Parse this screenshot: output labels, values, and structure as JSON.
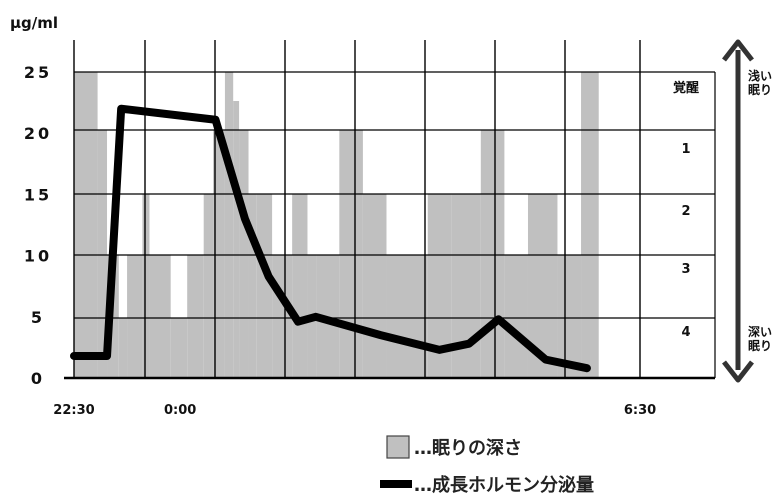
{
  "chart_data": {
    "type": "area",
    "y_unit_label": "μg/ml",
    "y_axis": {
      "range": [
        0,
        25
      ],
      "ticks": [
        "25",
        "20",
        "15",
        "10",
        "5",
        "0"
      ],
      "tick_values": [
        25,
        20,
        15,
        10,
        5,
        0
      ]
    },
    "x_axis": {
      "start": "22:30",
      "end": "6:30",
      "range_minutes": [
        0,
        480
      ],
      "tick_labels": [
        {
          "label": "22:30",
          "minute": 0
        },
        {
          "label": "0:00",
          "minute": 90
        },
        {
          "label": "6:30",
          "minute": 480
        }
      ]
    },
    "sleep_depth_axis": {
      "levels": [
        {
          "label": "覚醒",
          "value": 0
        },
        {
          "label": "1",
          "value": 1
        },
        {
          "label": "2",
          "value": 2
        },
        {
          "label": "3",
          "value": 3
        },
        {
          "label": "4",
          "value": 4
        }
      ],
      "top_label": "浅い眠り",
      "bottom_label": "深い眠り"
    },
    "series": [
      {
        "name": "成長ホルモン分泌量",
        "kind": "line",
        "points": [
          {
            "t": 0,
            "v": 1.8
          },
          {
            "t": 28,
            "v": 1.8
          },
          {
            "t": 40,
            "v": 22.0
          },
          {
            "t": 120,
            "v": 21.1
          },
          {
            "t": 145,
            "v": 13.0
          },
          {
            "t": 165,
            "v": 8.3
          },
          {
            "t": 190,
            "v": 4.6
          },
          {
            "t": 205,
            "v": 5.0
          },
          {
            "t": 260,
            "v": 3.5
          },
          {
            "t": 310,
            "v": 2.3
          },
          {
            "t": 335,
            "v": 2.8
          },
          {
            "t": 360,
            "v": 4.8
          },
          {
            "t": 400,
            "v": 1.5
          },
          {
            "t": 435,
            "v": 0.8
          }
        ]
      },
      {
        "name": "眠りの深さ",
        "kind": "area",
        "segments": [
          {
            "t0": 0,
            "t1": 20,
            "depth": 0
          },
          {
            "t0": 20,
            "t1": 28,
            "depth": 1
          },
          {
            "t0": 28,
            "t1": 38,
            "depth": 3
          },
          {
            "t0": 38,
            "t1": 45,
            "depth": 4
          },
          {
            "t0": 45,
            "t1": 58,
            "depth": 3
          },
          {
            "t0": 58,
            "t1": 64,
            "depth": 2
          },
          {
            "t0": 64,
            "t1": 82,
            "depth": 3
          },
          {
            "t0": 82,
            "t1": 96,
            "depth": 4
          },
          {
            "t0": 96,
            "t1": 110,
            "depth": 3
          },
          {
            "t0": 110,
            "t1": 118,
            "depth": 2
          },
          {
            "t0": 118,
            "t1": 128,
            "depth": 1
          },
          {
            "t0": 128,
            "t1": 135,
            "depth": 0
          },
          {
            "t0": 135,
            "t1": 140,
            "depth": 0.5
          },
          {
            "t0": 140,
            "t1": 148,
            "depth": 1
          },
          {
            "t0": 148,
            "t1": 155,
            "depth": 2
          },
          {
            "t0": 155,
            "t1": 168,
            "depth": 2
          },
          {
            "t0": 168,
            "t1": 185,
            "depth": 3
          },
          {
            "t0": 185,
            "t1": 198,
            "depth": 2
          },
          {
            "t0": 198,
            "t1": 206,
            "depth": 3
          },
          {
            "t0": 206,
            "t1": 225,
            "depth": 3
          },
          {
            "t0": 225,
            "t1": 245,
            "depth": 1
          },
          {
            "t0": 245,
            "t1": 265,
            "depth": 2
          },
          {
            "t0": 265,
            "t1": 300,
            "depth": 3
          },
          {
            "t0": 300,
            "t1": 320,
            "depth": 2
          },
          {
            "t0": 320,
            "t1": 345,
            "depth": 2
          },
          {
            "t0": 345,
            "t1": 365,
            "depth": 1
          },
          {
            "t0": 365,
            "t1": 385,
            "depth": 3
          },
          {
            "t0": 385,
            "t1": 410,
            "depth": 2
          },
          {
            "t0": 410,
            "t1": 430,
            "depth": 3
          },
          {
            "t0": 430,
            "t1": 445,
            "depth": 0
          }
        ]
      }
    ],
    "grid": true,
    "legend": {
      "position": "bottom-right",
      "items": [
        {
          "kind": "box",
          "label": "…眠りの深さ"
        },
        {
          "kind": "line",
          "label": "…成長ホルモン分泌量"
        }
      ]
    },
    "colors": {
      "area": "#c0c0c0",
      "line": "#000000",
      "grid": "#000000"
    }
  }
}
